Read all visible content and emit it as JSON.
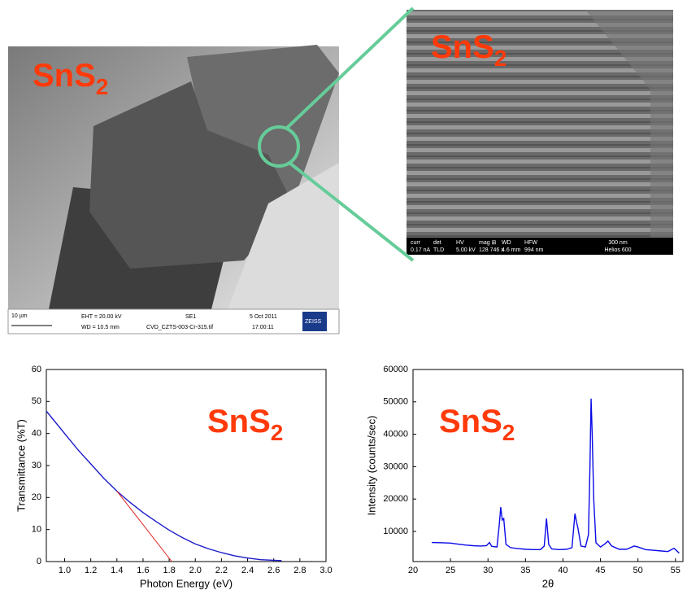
{
  "images": [
    {
      "label": "SnS",
      "label_subscript": "2",
      "scale": "10 µm",
      "eht": "EHT = 20.00 kV",
      "wd": "WD = 10.5 mm",
      "detector": "SE1",
      "file": "CVD_CZTS-003-Cr-315.tif",
      "date": "5 Oct 2011",
      "time": "17:00:11",
      "brand": "ZEISS"
    },
    {
      "label": "SnS",
      "label_subscript": "2",
      "headers": [
        "curr",
        "det",
        "HV",
        "mag ⊞",
        "WD",
        "HFW"
      ],
      "values": [
        "0.17 nA",
        "TLD",
        "5.00 kV",
        "128 746 x",
        "4.6 mm",
        "994 nm"
      ],
      "scale": "300 nm",
      "instrument": "Helios 600"
    }
  ],
  "chart_data": [
    {
      "type": "line",
      "label": "SnS",
      "label_subscript": "2",
      "xlabel": "Photon Energy (eV)",
      "ylabel": "Transmittance (%T)",
      "xlim": [
        0.86,
        3.0
      ],
      "ylim": [
        0,
        60
      ],
      "xticks": [
        {
          "value": 1.0,
          "label": "1.0"
        },
        1.2,
        1.4,
        1.6,
        1.8,
        {
          "value": 2.0,
          "label": "2.0"
        },
        2.2,
        2.4,
        2.6,
        2.8,
        {
          "value": 3.0,
          "label": "3.0"
        }
      ],
      "yticks": [
        0,
        10,
        20,
        30,
        40,
        50,
        60
      ],
      "series": [
        {
          "color": "#1c1cc8",
          "x": [
            0.86,
            0.9,
            1.0,
            1.1,
            1.2,
            1.3,
            1.4,
            1.5,
            1.6,
            1.7,
            1.8,
            1.9,
            2.0,
            2.1,
            2.2,
            2.3,
            2.4,
            2.5,
            2.6,
            2.66
          ],
          "values": [
            47,
            45,
            40,
            35,
            30.5,
            26,
            22,
            18.5,
            15.3,
            12.5,
            9.8,
            7.5,
            5.5,
            4,
            2.8,
            1.8,
            1.1,
            0.6,
            0.4,
            0.3
          ]
        },
        {
          "color": "#e02020",
          "x": [
            1.4,
            1.82
          ],
          "values": [
            22,
            0
          ]
        }
      ]
    },
    {
      "type": "line",
      "label": "SnS",
      "label_subscript": "2",
      "xlabel": "2θ",
      "ylabel": "Intensity (counts/sec)",
      "xlim": [
        20,
        56
      ],
      "ylim": [
        700,
        60000
      ],
      "xticks": [
        20,
        25,
        30,
        35,
        40,
        45,
        50,
        55
      ],
      "yticks": [
        10000,
        20000,
        30000,
        40000,
        50000,
        60000
      ],
      "series": [
        {
          "color": "#0a0ae6",
          "x": [
            22.5,
            24,
            25,
            26,
            27,
            28,
            29,
            29.8,
            30.2,
            30.5,
            31.2,
            31.5,
            31.7,
            31.9,
            32.1,
            32.4,
            33,
            34,
            35,
            36,
            37,
            37.5,
            37.8,
            38.1,
            38.5,
            39.5,
            40.5,
            41.2,
            41.6,
            41.8,
            42,
            42.4,
            43,
            43.4,
            43.6,
            43.75,
            43.9,
            44.1,
            44.4,
            45,
            45.5,
            46,
            46.5,
            47.5,
            48.5,
            49.5,
            50,
            51,
            52,
            53,
            54,
            54.8,
            55.1,
            55.5
          ],
          "values": [
            6600,
            6500,
            6400,
            6100,
            5800,
            5600,
            5500,
            5600,
            6600,
            5400,
            5200,
            12000,
            17500,
            13500,
            14000,
            6000,
            5000,
            4700,
            4500,
            4400,
            4400,
            5500,
            14000,
            6000,
            4600,
            4400,
            4500,
            5000,
            15500,
            13000,
            11000,
            5500,
            5200,
            9000,
            30000,
            51000,
            40000,
            20000,
            6500,
            5200,
            6000,
            7000,
            5500,
            4500,
            4500,
            5500,
            5200,
            4400,
            4200,
            4000,
            3800,
            4800,
            4200,
            3300
          ]
        }
      ]
    }
  ]
}
